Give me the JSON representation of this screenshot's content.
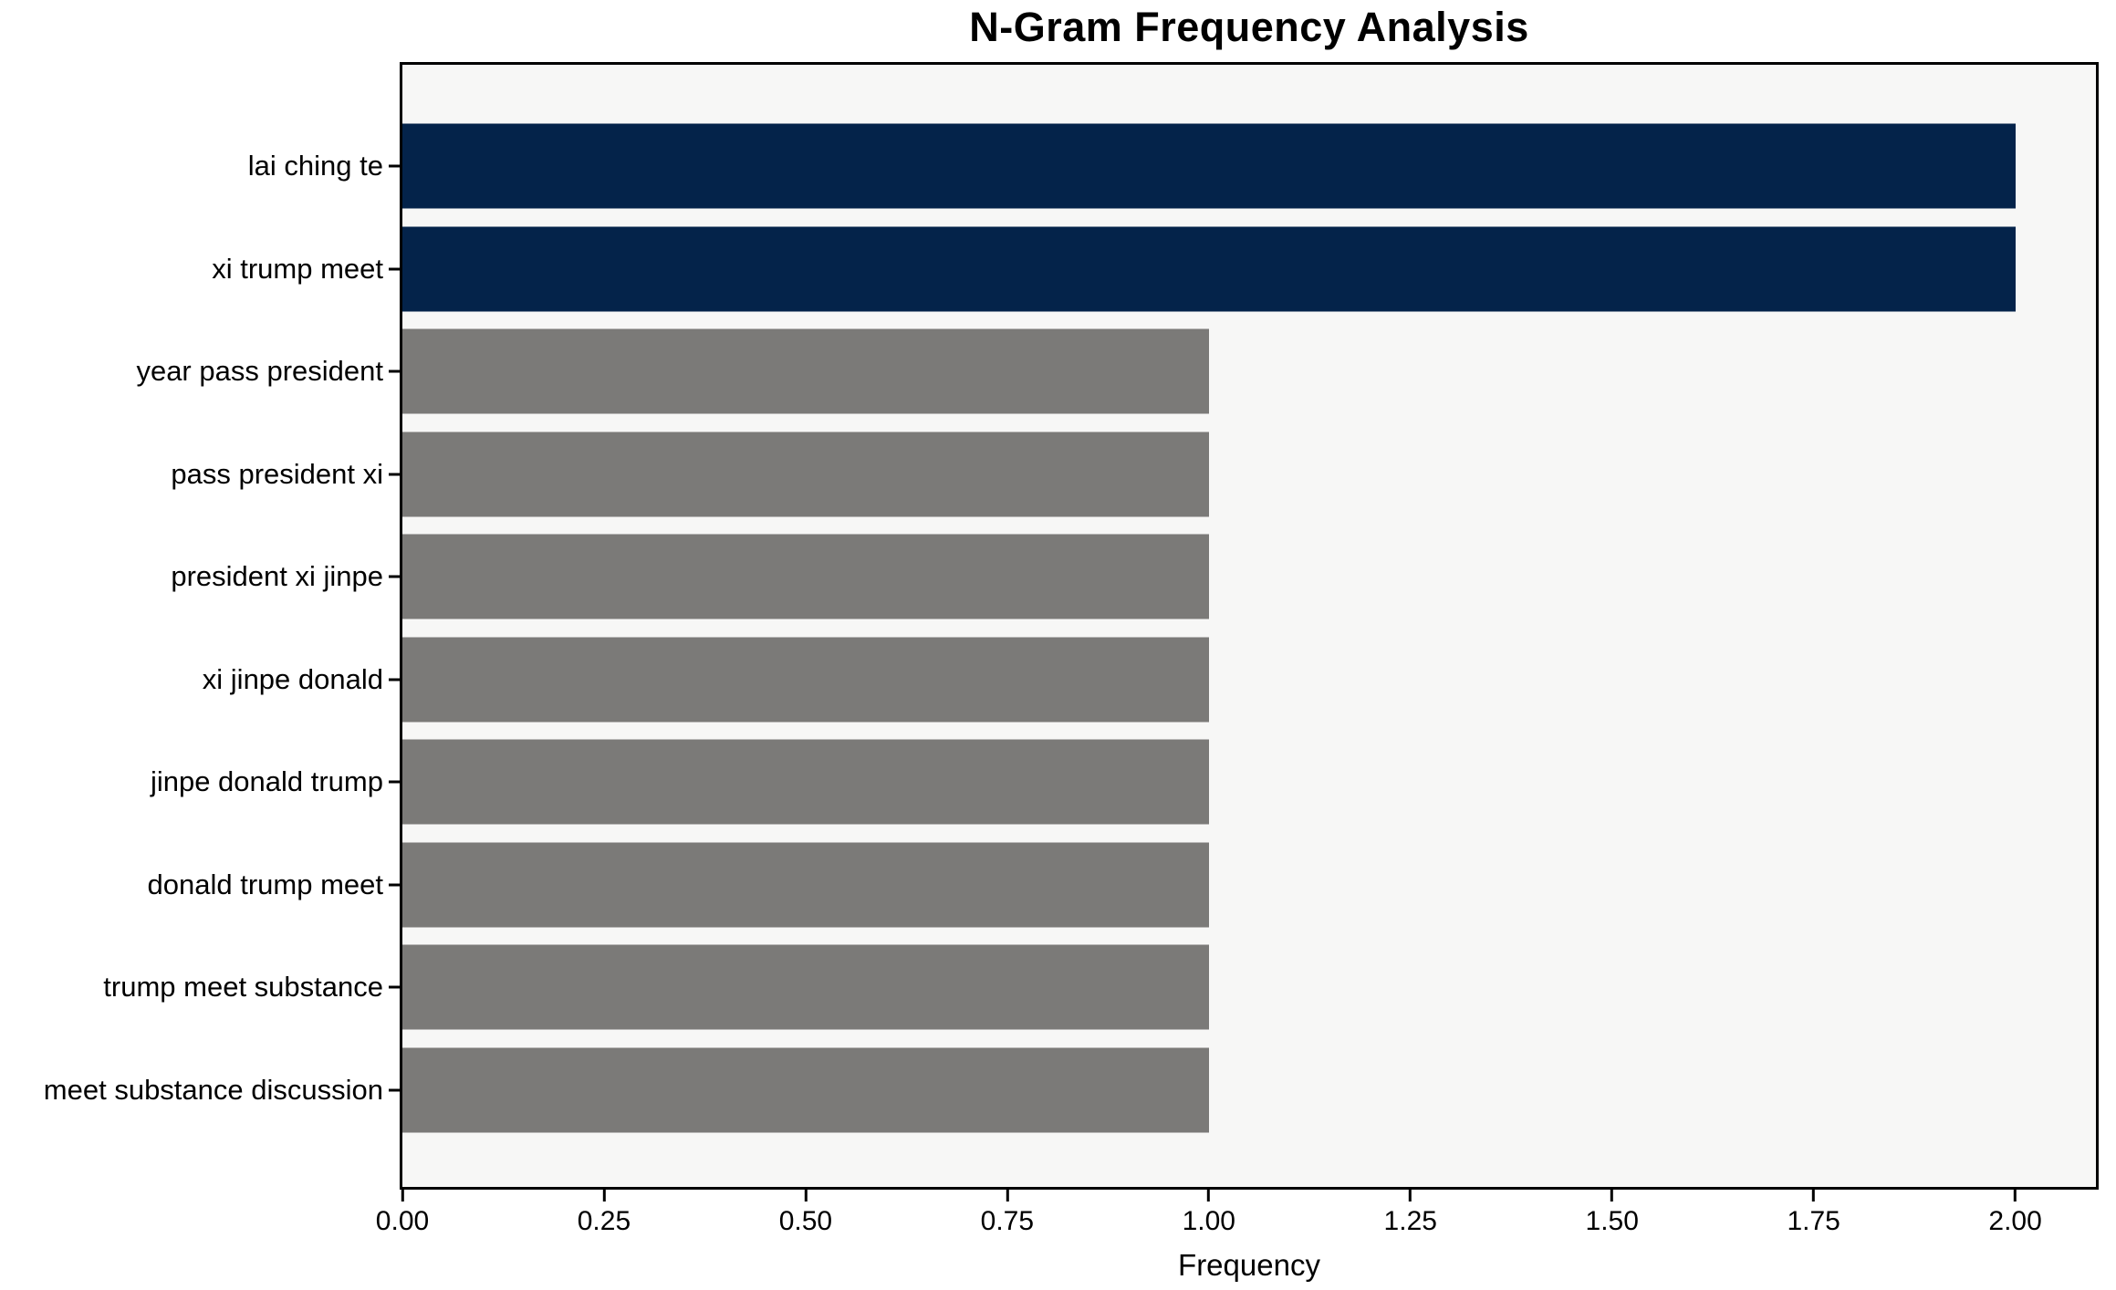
{
  "title": "N-Gram Frequency Analysis",
  "xlabel": "Frequency",
  "colors": {
    "page_bg": "#ffffff",
    "plot_bg": "#f7f7f6",
    "axis": "#000000",
    "bar_high": "#04234a",
    "bar_low": "#7b7a78"
  },
  "chart_data": {
    "type": "bar",
    "orientation": "horizontal",
    "title": "N-Gram Frequency Analysis",
    "xlabel": "Frequency",
    "ylabel": "",
    "categories": [
      "lai ching te",
      "xi trump meet",
      "year pass president",
      "pass president xi",
      "president xi jinpe",
      "xi jinpe donald",
      "jinpe donald trump",
      "donald trump meet",
      "trump meet substance",
      "meet substance discussion"
    ],
    "values": [
      2,
      2,
      1,
      1,
      1,
      1,
      1,
      1,
      1,
      1
    ],
    "bar_colors": [
      "#04234a",
      "#04234a",
      "#7b7a78",
      "#7b7a78",
      "#7b7a78",
      "#7b7a78",
      "#7b7a78",
      "#7b7a78",
      "#7b7a78",
      "#7b7a78"
    ],
    "xlim": [
      0,
      2.1
    ],
    "xtick_values": [
      0,
      0.25,
      0.5,
      0.75,
      1.0,
      1.25,
      1.5,
      1.75,
      2.0
    ],
    "xtick_labels": [
      "0.00",
      "0.25",
      "0.50",
      "0.75",
      "1.00",
      "1.25",
      "1.50",
      "1.75",
      "2.00"
    ],
    "grid": false,
    "legend": "none",
    "bar_height_ratio": 0.8
  }
}
